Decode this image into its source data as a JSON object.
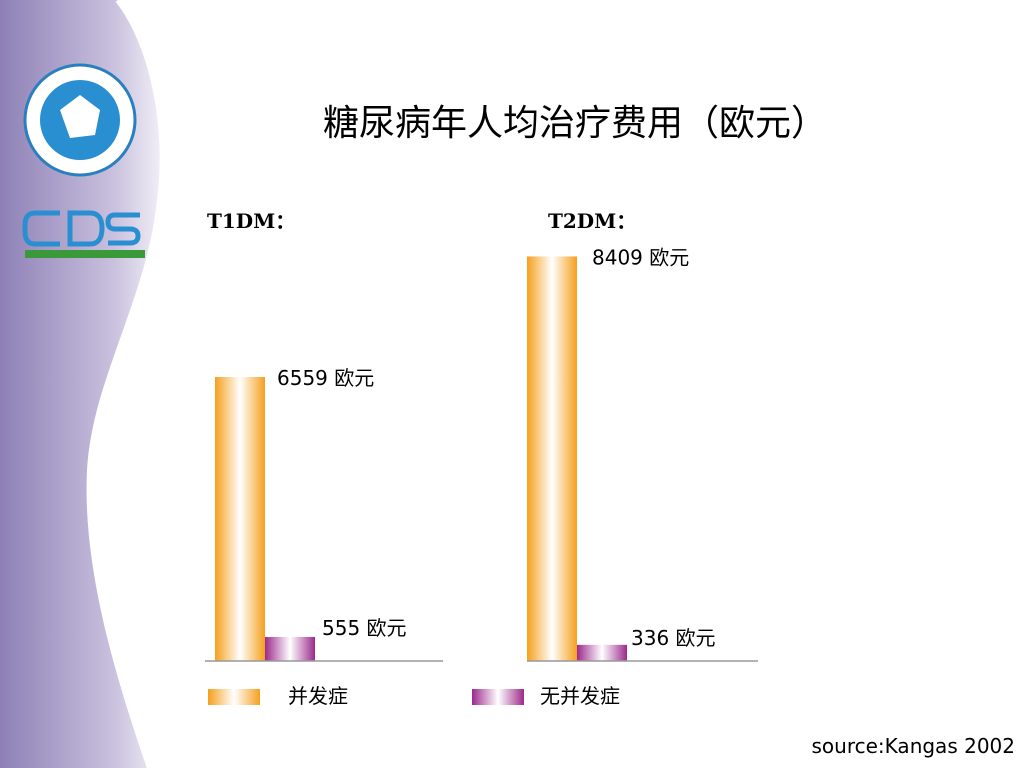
{
  "title": "糖尿病年人均治疗费用（欧元）",
  "source": "source:Kangas 2002",
  "chart_data": [
    {
      "type": "bar",
      "title": "T1DM：",
      "categories": [
        null
      ],
      "ylim": [
        0,
        10000
      ],
      "series": [
        {
          "name": "并发症",
          "color": "#f5a01e",
          "values": [
            6559
          ],
          "value_labels": [
            "6559 欧元"
          ]
        },
        {
          "name": "无并发症",
          "color": "#9c2a8c",
          "values": [
            555
          ],
          "value_labels": [
            "555 欧元"
          ]
        }
      ]
    },
    {
      "type": "bar",
      "title": "T2DM：",
      "categories": [
        null
      ],
      "ylim": [
        0,
        9000
      ],
      "series": [
        {
          "color": "#f5a01e",
          "values": [
            8409
          ],
          "value_labels": [
            "8409 欧元"
          ]
        },
        {
          "color": "#9c2a8c",
          "values": [
            336
          ],
          "value_labels": [
            "336 欧元"
          ]
        }
      ]
    }
  ]
}
